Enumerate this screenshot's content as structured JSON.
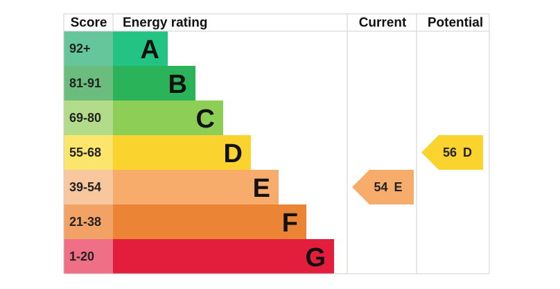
{
  "header": {
    "score": "Score",
    "rating": "Energy rating",
    "current": "Current",
    "potential": "Potential"
  },
  "bands": [
    {
      "score": "92+",
      "letter": "A"
    },
    {
      "score": "81-91",
      "letter": "B"
    },
    {
      "score": "69-80",
      "letter": "C"
    },
    {
      "score": "55-68",
      "letter": "D"
    },
    {
      "score": "39-54",
      "letter": "E"
    },
    {
      "score": "21-38",
      "letter": "F"
    },
    {
      "score": "1-20",
      "letter": "G"
    }
  ],
  "current": {
    "value": 54,
    "band": "E"
  },
  "potential": {
    "value": 56,
    "band": "D"
  }
}
